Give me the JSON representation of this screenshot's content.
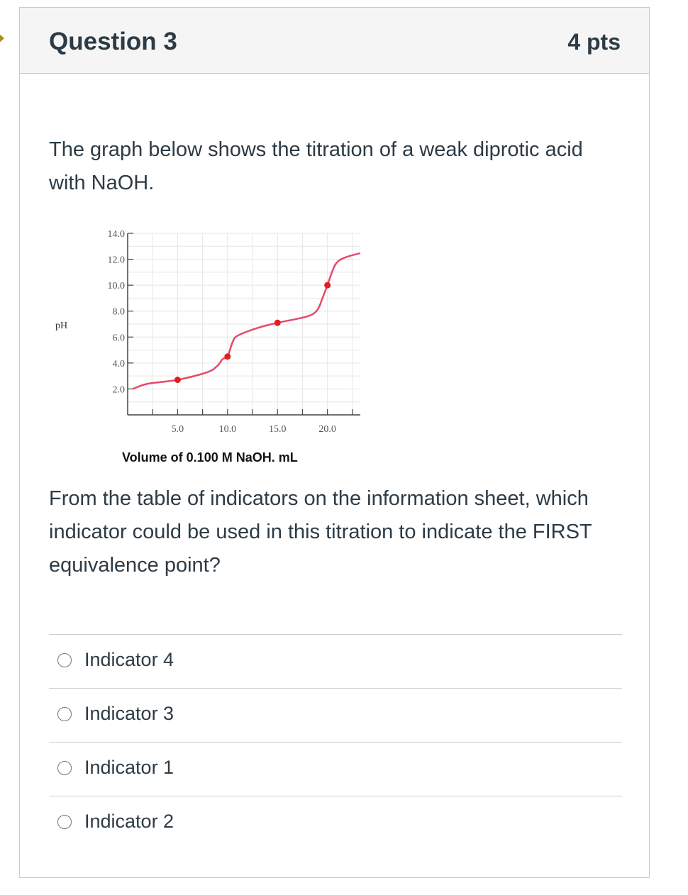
{
  "question": {
    "title": "Question 3",
    "points": "4 pts",
    "text_1": "The graph below shows the titration of a weak diprotic acid with NaOH.",
    "text_2": "From the table of indicators on the information sheet, which indicator could be used in this titration to indicate the FIRST equivalence point?"
  },
  "answers": [
    {
      "label": "Indicator 4",
      "selected": false
    },
    {
      "label": "Indicator 3",
      "selected": false
    },
    {
      "label": "Indicator 1",
      "selected": false
    },
    {
      "label": "Indicator 2",
      "selected": false
    }
  ],
  "chart_data": {
    "type": "line",
    "title": "",
    "xlabel": "Volume of 0.100 M NaOH, mL",
    "ylabel": "pH",
    "xlim": [
      0,
      24
    ],
    "ylim": [
      0,
      14
    ],
    "x_ticks": [
      "5.0",
      "10.0",
      "15.0",
      "20.0"
    ],
    "y_ticks": [
      "2.0",
      "4.0",
      "6.0",
      "8.0",
      "10.0",
      "12.0",
      "14.0"
    ],
    "grid": true,
    "line_color": "#e8486a",
    "point_color": "#e02020",
    "series": [
      {
        "x": [
          0.5,
          2,
          5,
          8,
          9,
          9.5,
          10,
          10.5,
          11,
          13,
          15,
          18,
          19,
          19.5,
          20,
          20.5,
          21,
          22,
          24
        ],
        "y": [
          2.0,
          2.4,
          2.7,
          3.3,
          3.8,
          4.3,
          4.5,
          5.6,
          6.1,
          6.7,
          7.1,
          7.6,
          8.1,
          9.0,
          10.0,
          11.1,
          11.8,
          12.2,
          12.6
        ]
      }
    ],
    "marked_points": [
      {
        "x": 5,
        "y": 2.7
      },
      {
        "x": 10,
        "y": 4.5
      },
      {
        "x": 15,
        "y": 7.1
      },
      {
        "x": 20,
        "y": 10.0
      }
    ]
  }
}
